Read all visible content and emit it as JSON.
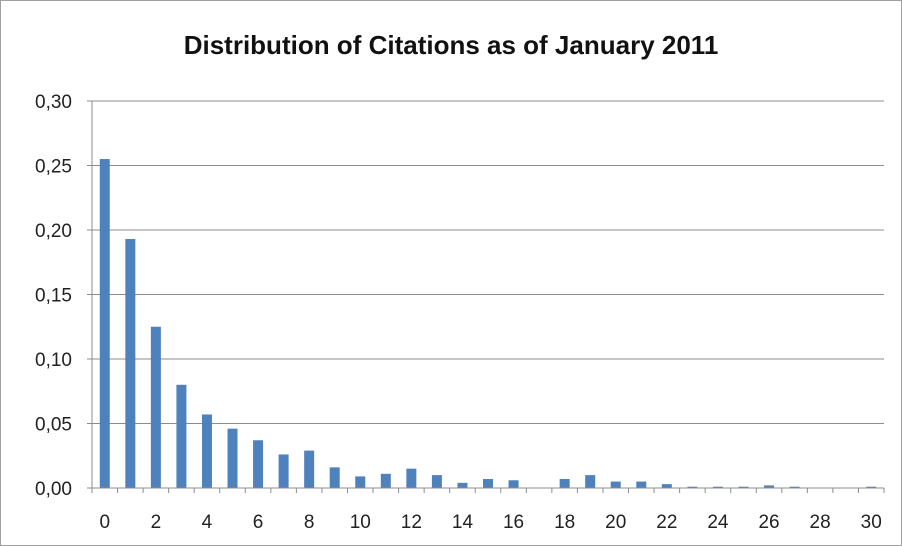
{
  "chart_data": {
    "type": "bar",
    "title": "Distribution of Citations as of January 2011",
    "xlabel": "",
    "ylabel": "",
    "x": [
      0,
      1,
      2,
      3,
      4,
      5,
      6,
      7,
      8,
      9,
      10,
      11,
      12,
      13,
      14,
      15,
      16,
      17,
      18,
      19,
      20,
      21,
      22,
      23,
      24,
      25,
      26,
      27,
      28,
      29,
      30
    ],
    "values": [
      0.255,
      0.193,
      0.125,
      0.08,
      0.057,
      0.046,
      0.037,
      0.026,
      0.029,
      0.016,
      0.009,
      0.011,
      0.015,
      0.01,
      0.004,
      0.007,
      0.006,
      0.0,
      0.007,
      0.01,
      0.005,
      0.005,
      0.003,
      0.001,
      0.001,
      0.001,
      0.002,
      0.001,
      0.0,
      0.0,
      0.001
    ],
    "ylim": [
      0,
      0.3
    ],
    "yticks": [
      "0,00",
      "0,05",
      "0,10",
      "0,15",
      "0,20",
      "0,25",
      "0,30"
    ],
    "xticks": [
      "0",
      "2",
      "4",
      "6",
      "8",
      "10",
      "12",
      "14",
      "16",
      "18",
      "20",
      "22",
      "24",
      "26",
      "28",
      "30"
    ],
    "grid": true,
    "legend": "none",
    "bar_color": "#4F81BD"
  }
}
